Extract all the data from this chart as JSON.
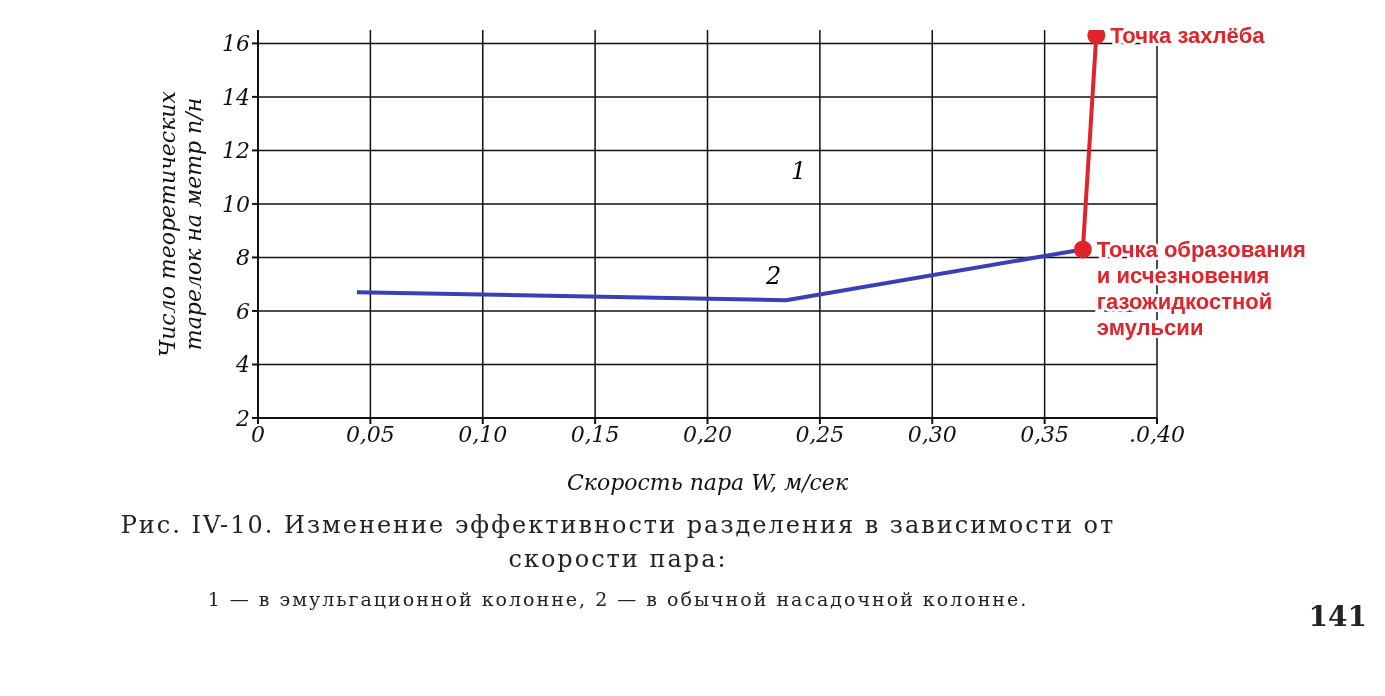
{
  "chart_data": {
    "type": "line",
    "xlabel": "Скорость пара W, м/сек",
    "ylabel": "Число теоретических тарелок на метр п/н",
    "xlim": [
      0,
      0.4
    ],
    "ylim": [
      2,
      16.5
    ],
    "xticks": [
      0,
      {
        "value": 0.05,
        "label": "0,05"
      },
      {
        "value": 0.1,
        "label": "0,10"
      },
      {
        "value": 0.15,
        "label": "0,15"
      },
      {
        "value": 0.2,
        "label": "0,20"
      },
      {
        "value": 0.25,
        "label": "0,25"
      },
      {
        "value": 0.3,
        "label": "0,30"
      },
      {
        "value": 0.35,
        "label": "0,35"
      },
      {
        "value": 0.4,
        "label": ".0,40"
      }
    ],
    "yticks": [
      2,
      4,
      6,
      8,
      10,
      12,
      14,
      16
    ],
    "grid": true,
    "series": [
      {
        "color": "#3b3fb5",
        "x": [
          0.044,
          0.235,
          0.367
        ],
        "values": [
          6.7,
          6.4,
          8.3
        ],
        "marker": "none"
      },
      {
        "color": "#e0242c",
        "x": [
          0.367,
          0.373
        ],
        "values": [
          8.3,
          16.3
        ],
        "marker": "circle"
      }
    ],
    "annotations": [
      "1",
      "2",
      {
        "text": "Точка захлёба",
        "x": 0.373,
        "y": 16.3
      },
      {
        "text": "Точка образования и исчезновения газожидкостной эмульсии",
        "x": 0.367,
        "y": 8.3
      },
      "Рис. IV-10. Изменение эффективности разделения в зависимости от скорости пара:",
      "1 — в эмульгационной колонне, 2 — в обычной насадочной колонне.",
      "141"
    ]
  }
}
